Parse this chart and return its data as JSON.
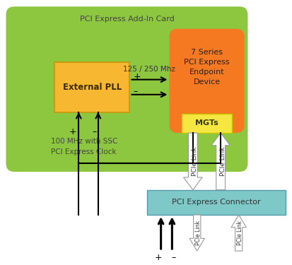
{
  "fig_w": 4.13,
  "fig_h": 3.75,
  "dpi": 100,
  "bg": "#ffffff",
  "green": "#8dc63f",
  "orange": "#f47920",
  "yellow_pll": "#f7b731",
  "yellow_mgts": "#f5e642",
  "cyan": "#7ec8c8",
  "dark_text": "#333333",
  "green_text": "#5a6e1e",
  "green_box_label": "PCI Express Add-In Card",
  "orange_label": "7 Series\nPCI Express\nEndpoint\nDevice",
  "pll_label": "External PLL",
  "mgts_label": "MGTs",
  "connector_label": "PCI Express Connector",
  "freq_label": "125 / 250 Mhz",
  "clock_label": "100 MHz with SSC\nPCI Express Clock",
  "pcie_link": "PCIe Link"
}
